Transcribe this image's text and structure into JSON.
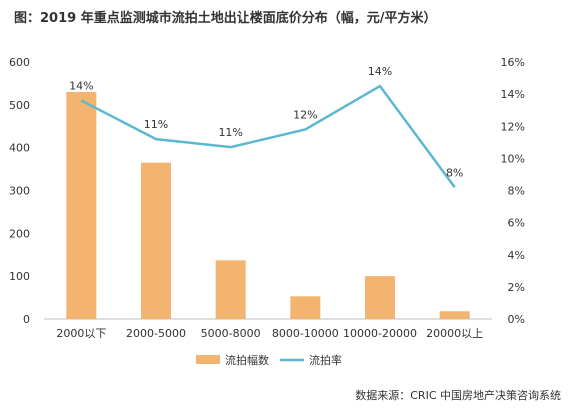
{
  "chart_data": {
    "type": "bar",
    "title": "图：2019 年重点监测城市流拍土地出让楼面底价分布（幅，元/平方米）",
    "categories": [
      "2000以下",
      "2000-5000",
      "5000-8000",
      "8000-10000",
      "10000-20000",
      "20000以上"
    ],
    "series": [
      {
        "name": "流拍幅数",
        "type": "bar",
        "axis": "left",
        "color": "#F2B46E",
        "values": [
          530,
          365,
          137,
          53,
          100,
          18
        ]
      },
      {
        "name": "流拍率",
        "type": "line",
        "axis": "right",
        "color": "#5BB8CF",
        "values": [
          13.6,
          11.2,
          10.7,
          11.8,
          14.5,
          8.2
        ],
        "labels": [
          "14%",
          "11%",
          "11%",
          "12%",
          "14%",
          "8%"
        ]
      }
    ],
    "ylim_left": [
      0,
      600
    ],
    "yticks_left": [
      "0",
      "100",
      "200",
      "300",
      "400",
      "500",
      "600"
    ],
    "ylim_right": [
      0,
      16
    ],
    "yticks_right": [
      "0%",
      "2%",
      "4%",
      "6%",
      "8%",
      "10%",
      "12%",
      "14%",
      "16%"
    ],
    "grid": false,
    "legend": "bottom"
  },
  "source": "数据来源：CRIC 中国房地产决策咨询系统"
}
